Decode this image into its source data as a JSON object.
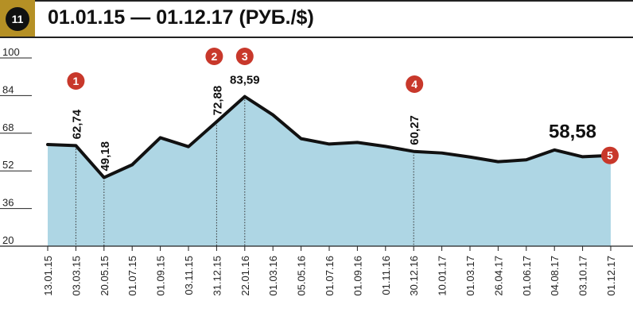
{
  "header": {
    "badge_number": "11",
    "title": "01.01.15 — 01.12.17 (РУБ./$)"
  },
  "colors": {
    "badge_bg": "#b59025",
    "area_fill": "#aed6e4",
    "line": "#111111",
    "marker": "#c8382b"
  },
  "chart_data": {
    "type": "area",
    "title": "01.01.15 — 01.12.17 (РУБ./$)",
    "xlabel": "",
    "ylabel": "",
    "ylim": [
      20,
      100
    ],
    "yticks": [
      "100",
      "84",
      "68",
      "52",
      "36",
      "20"
    ],
    "grid": false,
    "legend": "none",
    "categories": [
      "13.01.15",
      "03.03.15",
      "20.05.15",
      "01.07.15",
      "01.09.15",
      "03.11.15",
      "31.12.15",
      "22.01.16",
      "01.03.16",
      "05.05.16",
      "01.07.16",
      "01.09.16",
      "01.11.16",
      "30.12.16",
      "10.01.17",
      "01.03.17",
      "26.04.17",
      "01.06.17",
      "04.08.17",
      "03.10.17",
      "01.12.17"
    ],
    "values": [
      63.2,
      62.74,
      49.18,
      54.6,
      66.1,
      62.3,
      72.88,
      83.59,
      75.8,
      65.7,
      63.4,
      64.1,
      62.4,
      60.27,
      59.6,
      57.9,
      55.9,
      56.7,
      60.9,
      58.0,
      58.58
    ],
    "annotations": [
      {
        "label": "62,74",
        "index": 1,
        "marker": "1"
      },
      {
        "label": "49,18",
        "index": 2,
        "marker": ""
      },
      {
        "label": "72,88",
        "index": 6,
        "marker": "2"
      },
      {
        "label": "83,59",
        "index": 7,
        "marker": "3"
      },
      {
        "label": "60,27",
        "index": 13,
        "marker": "4"
      },
      {
        "label": "58,58",
        "index": 20,
        "marker": "5"
      }
    ]
  }
}
